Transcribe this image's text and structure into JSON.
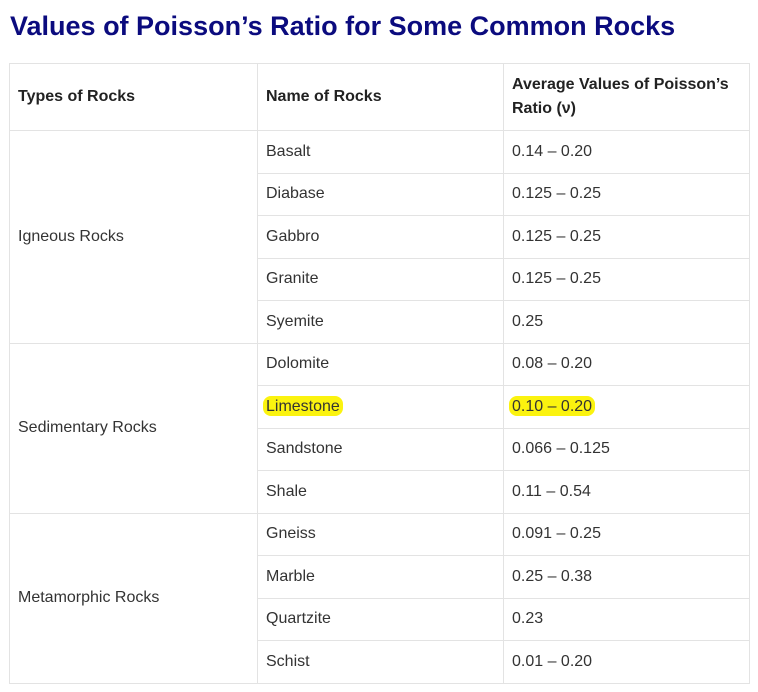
{
  "title": "Values of Poisson’s Ratio for Some Common Rocks",
  "table": {
    "headers": [
      "Types of Rocks",
      "Name of Rocks",
      "Average Values of Poisson’s Ratio (ν)"
    ],
    "groups": [
      {
        "type": "Igneous Rocks",
        "rows": [
          {
            "name": "Basalt",
            "value": "0.14 – 0.20"
          },
          {
            "name": "Diabase",
            "value": "0.125 – 0.25"
          },
          {
            "name": "Gabbro",
            "value": "0.125 – 0.25"
          },
          {
            "name": "Granite",
            "value": "0.125 – 0.25"
          },
          {
            "name": "Syemite",
            "value": "0.25"
          }
        ]
      },
      {
        "type": "Sedimentary Rocks",
        "rows": [
          {
            "name": "Dolomite",
            "value": "0.08 – 0.20"
          },
          {
            "name": "Limestone",
            "value": "0.10 – 0.20"
          },
          {
            "name": "Sandstone",
            "value": "0.066 – 0.125"
          },
          {
            "name": "Shale",
            "value": "0.11 – 0.54"
          }
        ]
      },
      {
        "type": "Metamorphic Rocks",
        "rows": [
          {
            "name": "Gneiss",
            "value": "0.091 – 0.25"
          },
          {
            "name": "Marble",
            "value": "0.25 – 0.38"
          },
          {
            "name": "Quartzite",
            "value": "0.23"
          },
          {
            "name": "Schist",
            "value": "0.01 – 0.20"
          }
        ]
      }
    ]
  },
  "highlight_color": "#fbf30f",
  "title_color": "#0b0b7e"
}
